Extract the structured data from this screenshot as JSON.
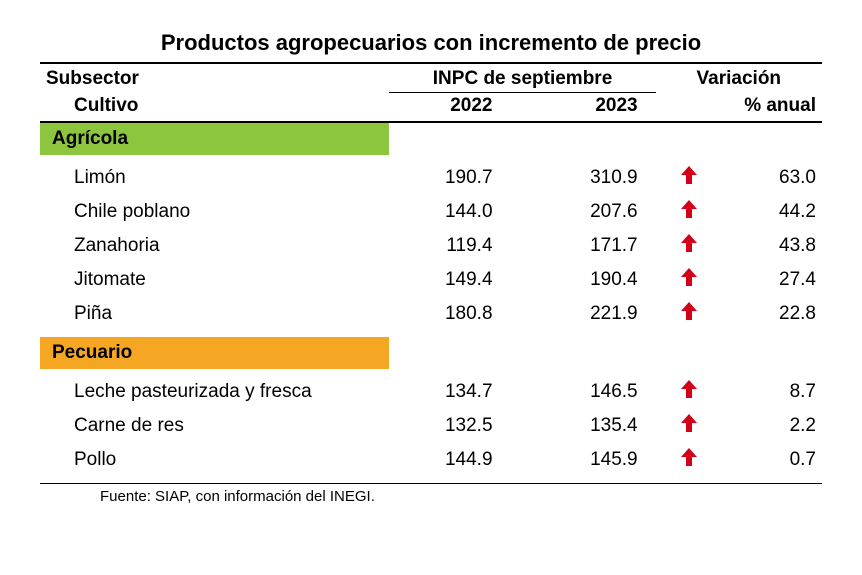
{
  "title": "Productos agropecuarios con incremento de precio",
  "headers": {
    "subsector": "Subsector",
    "inpc": "INPC de septiembre",
    "variacion": "Variación",
    "cultivo": "Cultivo",
    "y2022": "2022",
    "y2023": "2023",
    "pct_anual": "% anual"
  },
  "sections": [
    {
      "name": "Agrícola",
      "bg_color": "#8cc63f",
      "rows": [
        {
          "name": "Limón",
          "v2022": "190.7",
          "v2023": "310.9",
          "dir": "up",
          "pct": "63.0"
        },
        {
          "name": "Chile poblano",
          "v2022": "144.0",
          "v2023": "207.6",
          "dir": "up",
          "pct": "44.2"
        },
        {
          "name": "Zanahoria",
          "v2022": "119.4",
          "v2023": "171.7",
          "dir": "up",
          "pct": "43.8"
        },
        {
          "name": "Jitomate",
          "v2022": "149.4",
          "v2023": "190.4",
          "dir": "up",
          "pct": "27.4"
        },
        {
          "name": "Piña",
          "v2022": "180.8",
          "v2023": "221.9",
          "dir": "up",
          "pct": "22.8"
        }
      ]
    },
    {
      "name": "Pecuario",
      "bg_color": "#f5a623",
      "rows": [
        {
          "name": "Leche pasteurizada y fresca",
          "v2022": "134.7",
          "v2023": "146.5",
          "dir": "up",
          "pct": "8.7"
        },
        {
          "name": "Carne de res",
          "v2022": "132.5",
          "v2023": "135.4",
          "dir": "up",
          "pct": "2.2"
        },
        {
          "name": "Pollo",
          "v2022": "144.9",
          "v2023": "145.9",
          "dir": "up",
          "pct": "0.7"
        }
      ]
    }
  ],
  "source": "Fuente: SIAP, con información del INEGI.",
  "colors": {
    "arrow_up": "#d4001a",
    "arrow_up_fill": "#d4001a"
  }
}
